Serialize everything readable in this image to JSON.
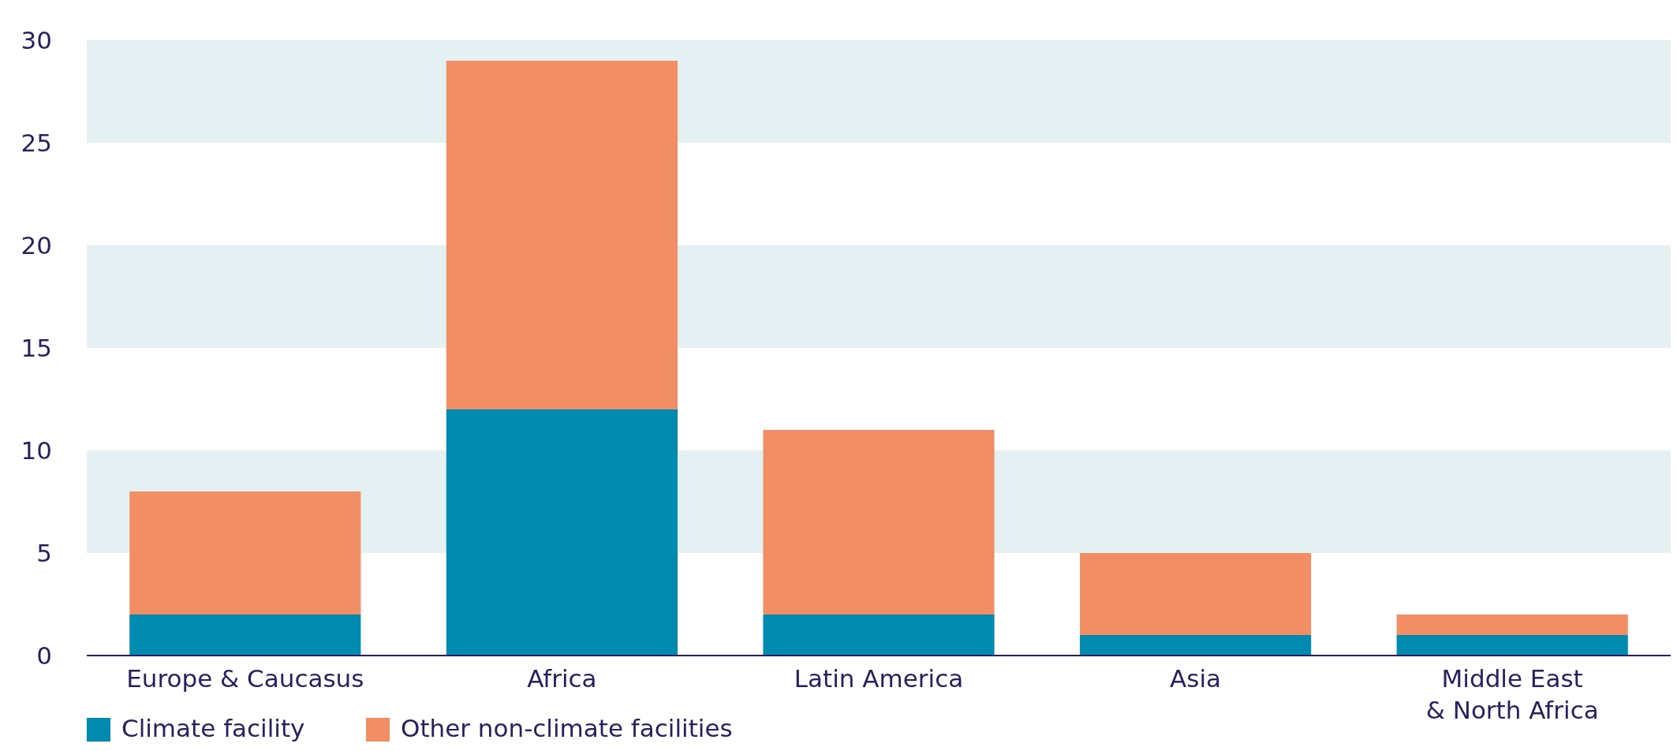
{
  "chart_data": {
    "type": "bar",
    "stacked": true,
    "categories": [
      "Europe & Caucasus",
      "Africa",
      "Latin America",
      "Asia",
      "Middle East\n& North Africa"
    ],
    "series": [
      {
        "name": "Climate facility",
        "color": "#008ab0",
        "values": [
          2,
          12,
          2,
          1,
          1
        ]
      },
      {
        "name": "Other non-climate facilities",
        "color": "#f28e66",
        "values": [
          6,
          17,
          9,
          4,
          1
        ]
      }
    ],
    "ylim": [
      0,
      30
    ],
    "yticks": [
      0,
      5,
      10,
      15,
      20,
      25,
      30
    ],
    "bands": [
      {
        "axis": "y",
        "from": 5,
        "to": 10,
        "color": "#e5f0f2"
      },
      {
        "axis": "y",
        "from": 15,
        "to": 20,
        "color": "#e5f0f2"
      },
      {
        "axis": "y",
        "from": 25,
        "to": 30,
        "color": "#e5f0f2"
      }
    ],
    "legend": "bottom left"
  }
}
